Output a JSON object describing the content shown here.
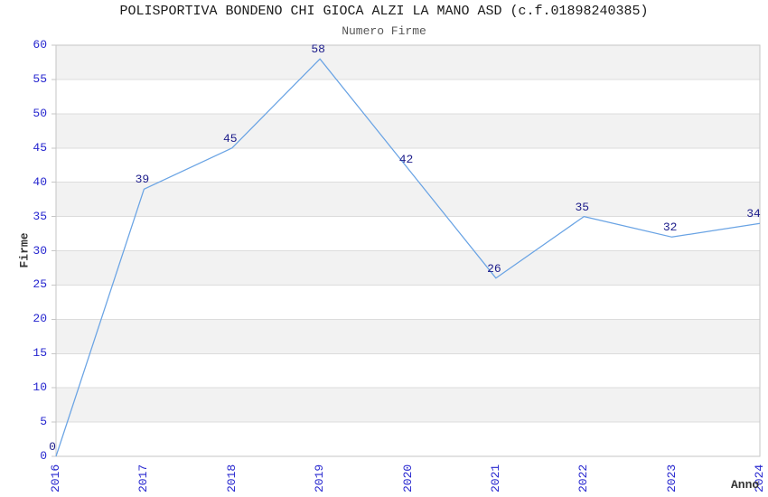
{
  "chart_data": {
    "type": "line",
    "title": "POLISPORTIVA BONDENO CHI GIOCA ALZI LA MANO ASD (c.f.01898240385)",
    "subtitle": "Numero Firme",
    "xlabel": "Anno",
    "ylabel": "Firme",
    "categories": [
      "2016",
      "2017",
      "2018",
      "2019",
      "2020",
      "2021",
      "2022",
      "2023",
      "2024"
    ],
    "values": [
      0,
      39,
      45,
      58,
      42,
      26,
      35,
      32,
      34
    ],
    "ylim": [
      0,
      60
    ],
    "ytick_step": 5,
    "yticks": [
      0,
      5,
      10,
      15,
      20,
      25,
      30,
      35,
      40,
      45,
      50,
      55,
      60
    ],
    "grid": "horizontal-only",
    "banding": "alternating 5-unit gray bands, gray at top band 55-60",
    "legend": "none",
    "colors": {
      "line": "#69a3e4",
      "tick_label": "#2626cf",
      "data_label": "#1c1c8a",
      "band": "#f2f2f2",
      "gridline": "#dcdcdc",
      "border": "#c6c6c6",
      "title": "#1a1a1a",
      "subtitle": "#575757",
      "axis_title": "#333333",
      "background": "#ffffff"
    }
  }
}
